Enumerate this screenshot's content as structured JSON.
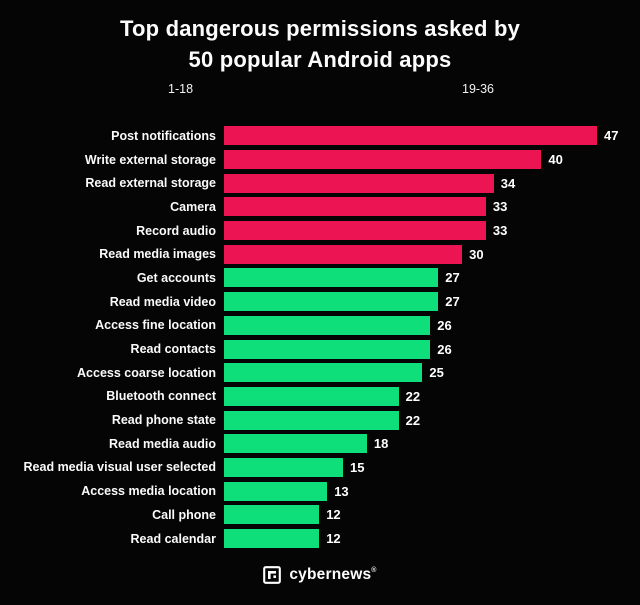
{
  "header": {
    "title_line1": "Top dangerous permissions asked by",
    "title_line2": "50 popular Android apps",
    "range_left": "1-18",
    "range_right": "19-36"
  },
  "chart_data": {
    "type": "bar",
    "orientation": "horizontal",
    "title": "Top dangerous permissions asked by 50 popular Android apps",
    "xlabel": "",
    "ylabel": "",
    "xlim": [
      0,
      47
    ],
    "grid": false,
    "value_labels": "end-of-bar",
    "legend": "none",
    "background_color": "#050505",
    "palette": {
      "red": "#ec1452",
      "green": "#0fdf7b"
    },
    "categories": [
      "Post notifications",
      "Write external storage",
      "Read external storage",
      "Camera",
      "Record audio",
      "Read media images",
      "Get accounts",
      "Read media video",
      "Access fine location",
      "Read contacts",
      "Access coarse location",
      "Bluetooth connect",
      "Read phone state",
      "Read media audio",
      "Read media visual user selected",
      "Access media location",
      "Call phone",
      "Read calendar"
    ],
    "values": [
      47,
      40,
      34,
      33,
      33,
      30,
      27,
      27,
      26,
      26,
      25,
      22,
      22,
      18,
      15,
      13,
      12,
      12
    ],
    "colors": [
      "red",
      "red",
      "red",
      "red",
      "red",
      "red",
      "green",
      "green",
      "green",
      "green",
      "green",
      "green",
      "green",
      "green",
      "green",
      "green",
      "green",
      "green"
    ]
  },
  "footer": {
    "brand": "cybernews",
    "registered_mark": "®"
  }
}
